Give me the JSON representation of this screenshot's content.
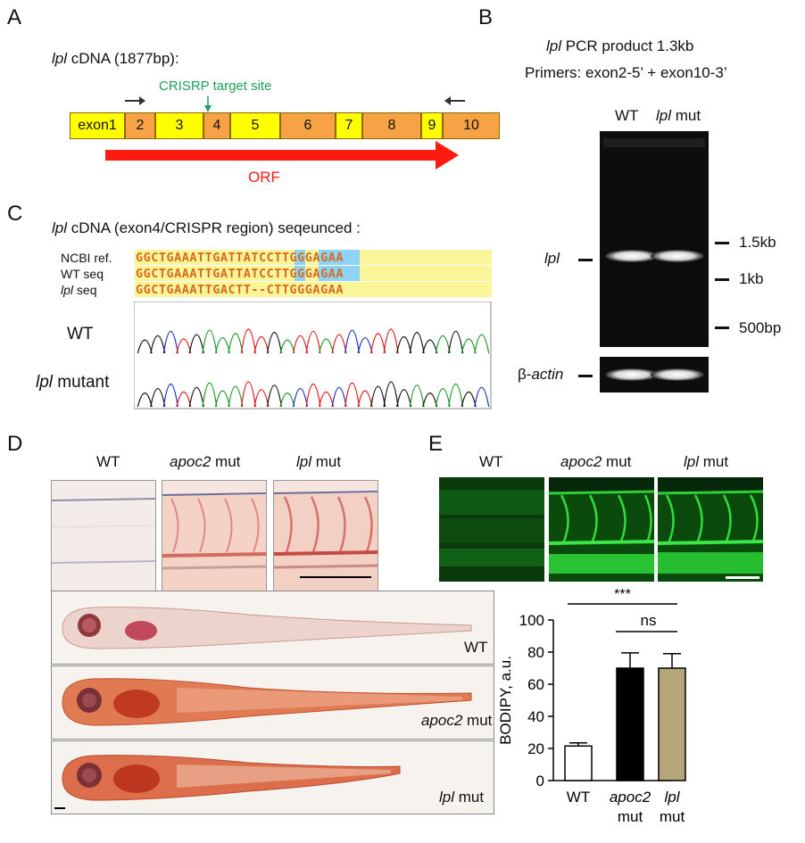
{
  "panelA": {
    "label": "A",
    "title_gene": "lpl",
    "title_rest": " cDNA (1877bp):",
    "target_label": "CRISRP target site",
    "exons": [
      "exon1",
      "2",
      "3",
      "4",
      "5",
      "6",
      "7",
      "8",
      "9",
      "10"
    ],
    "orf_label": "ORF",
    "colors": {
      "exon_yellow": "#ffff00",
      "exon_orange": "#f8a246",
      "orf": "#ff1a10",
      "target": "#1fa15a"
    }
  },
  "panelB": {
    "label": "B",
    "title_gene": "lpl",
    "title_rest": " PCR product 1.3kb",
    "primers": "Primers: exon2-5’ + exon10-3’",
    "lane_wt": "WT",
    "lane_mut_gene": "lpl",
    "lane_mut_rest": " mut",
    "band_label": "lpl",
    "ladder": [
      "1.5kb",
      "1kb",
      "500bp"
    ],
    "actin_prefix": "β-",
    "actin_gene": "actin"
  },
  "panelC": {
    "label": "C",
    "title_gene": "lpl",
    "title_rest": " cDNA (exon4/CRISPR region) seqeunced :",
    "rows": [
      {
        "name": "NCBI ref.",
        "seq": "GGCTGAAATTGATTATCCTTGGGAGAA"
      },
      {
        "name": "WT seq",
        "seq": "GGCTGAAATTGATTATCCTTGGGAGAA"
      },
      {
        "name_gene": "lpl",
        "name_rest": " seq",
        "seq": "GGCTGAAATTGACTT--CTTGGGAGAA"
      }
    ],
    "trace_wt": "WT",
    "trace_mut_gene": "lpl",
    "trace_mut_rest": " mutant"
  },
  "panelD": {
    "label": "D",
    "col_wt": "WT",
    "col_apoc2_gene": "apoc2",
    "col_apoc2_rest": " mut",
    "col_lpl_gene": "lpl",
    "col_lpl_rest": " mut",
    "fish_wt": "WT",
    "fish_apoc2_gene": "apoc2",
    "fish_apoc2_rest": " mut",
    "fish_lpl_gene": "lpl",
    "fish_lpl_rest": " mut"
  },
  "panelE": {
    "label": "E",
    "col_wt": "WT",
    "col_apoc2_gene": "apoc2",
    "col_apoc2_rest": " mut",
    "col_lpl_gene": "lpl",
    "col_lpl_rest": " mut",
    "sig_main": "***",
    "sig_ns": "ns"
  },
  "chart_data": {
    "type": "bar",
    "categories": [
      "WT",
      "apoc2 mut",
      "lpl mut"
    ],
    "x_label_parts": [
      [
        "WT"
      ],
      [
        "apoc2",
        "mut"
      ],
      [
        "lpl",
        "mut"
      ]
    ],
    "values": [
      21.5,
      70,
      70
    ],
    "errors": [
      2,
      9.5,
      9
    ],
    "colors": [
      "#ffffff",
      "#000000",
      "#b5a77a"
    ],
    "ylabel": "BODIPY, a.u.",
    "ylim": [
      0,
      100
    ],
    "yticks": [
      0,
      20,
      40,
      60,
      80,
      100
    ]
  }
}
